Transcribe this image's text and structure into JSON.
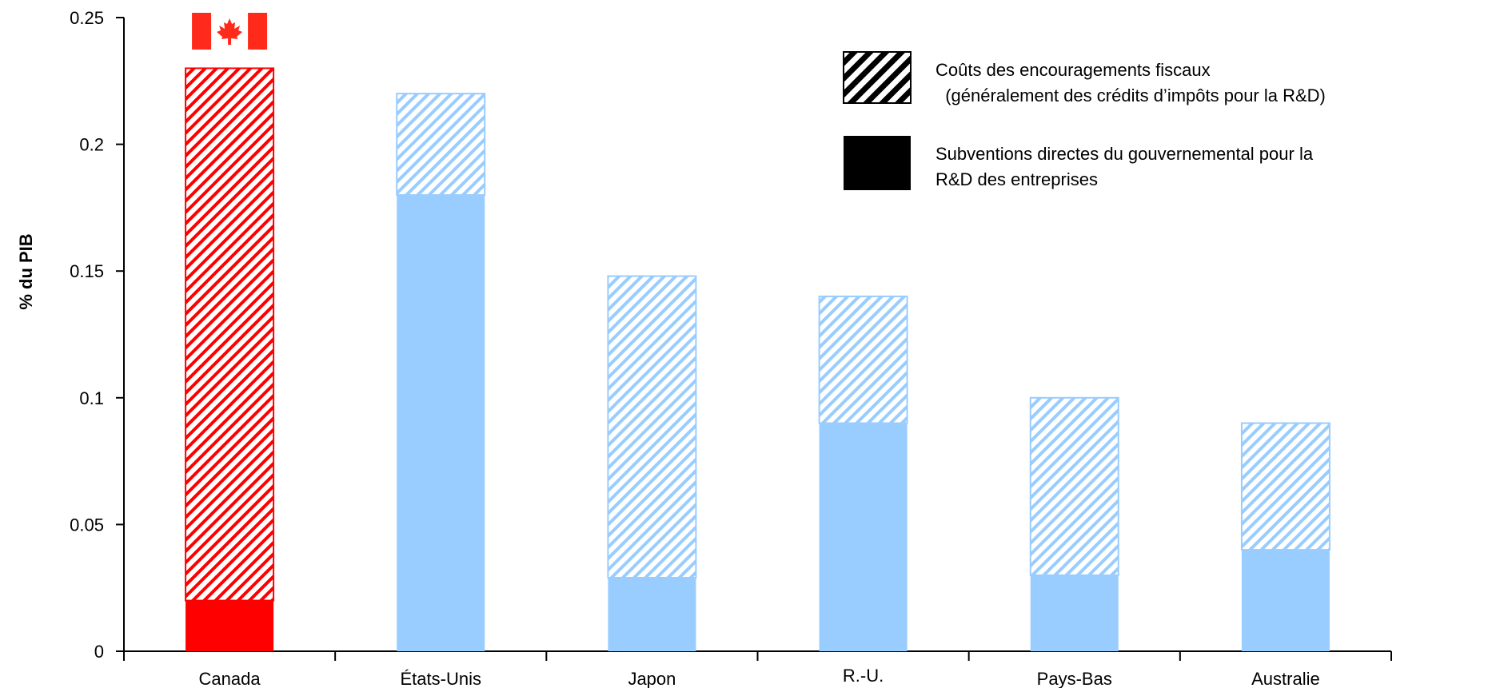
{
  "chart_data": {
    "type": "bar",
    "stacked": true,
    "ylabel": "% du PIB",
    "xlabel": "",
    "ylim": [
      0,
      0.25
    ],
    "yticks": [
      "0",
      "0.05",
      "0.1",
      "0.15",
      "0.2",
      "0.25"
    ],
    "categories": [
      "Canada",
      "États-Unis",
      "Japon",
      "R.-U.",
      "Pays-Bas",
      "Australie"
    ],
    "series": [
      {
        "name": "Subventions directes du gouvernemental pour la R&D des entreprises",
        "values": [
          0.02,
          0.18,
          0.029,
          0.09,
          0.03,
          0.04
        ]
      },
      {
        "name": "Coûts des encouragements fiscaux (généralement des crédits d'impôts pour la R&D)",
        "values": [
          0.21,
          0.04,
          0.119,
          0.05,
          0.07,
          0.05
        ]
      }
    ],
    "highlight_category": "Canada",
    "highlight_icon": "canada-flag-icon",
    "colors": {
      "highlight": "#ff0000",
      "default": "#99ccff"
    },
    "legend": [
      {
        "icon": "hatched-swatch",
        "lines": [
          "Coûts des encouragements fiscaux",
          "  (généralement des crédits d’impôts pour la R&D)"
        ]
      },
      {
        "icon": "solid-swatch",
        "lines": [
          "Subventions directes du gouvernemental pour la",
          "R&D des entreprises"
        ]
      }
    ],
    "legend_position": "top-right"
  }
}
